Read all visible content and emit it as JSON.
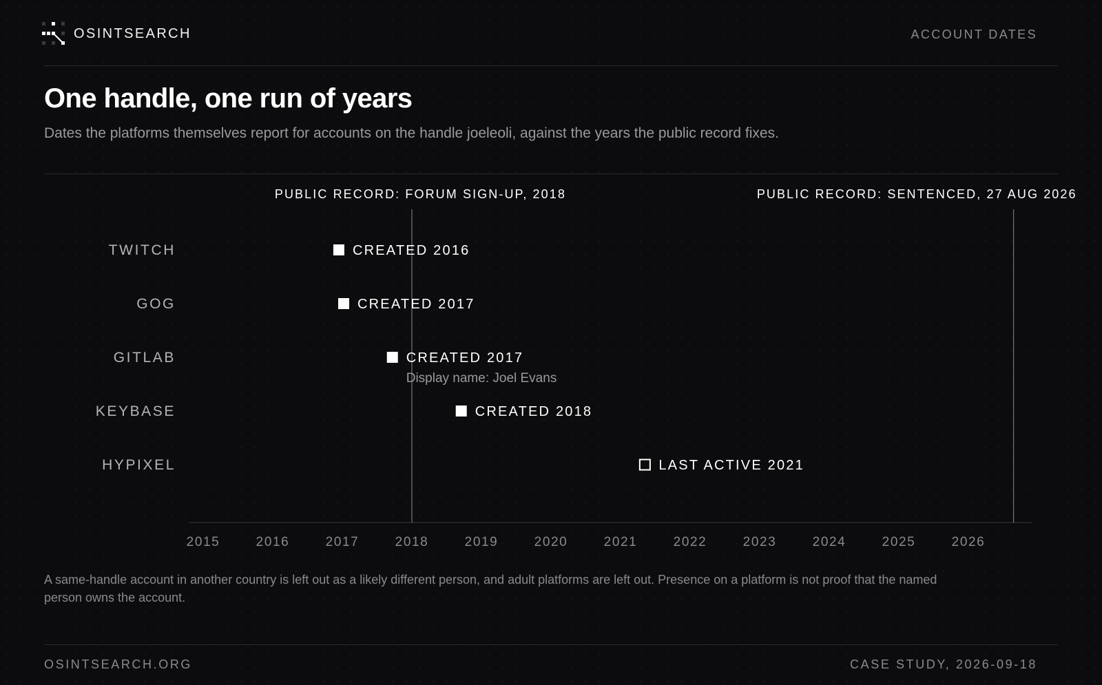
{
  "header": {
    "brand": "OSINTSEARCH",
    "logo_icon": "dotted-network-logo-icon",
    "section": "ACCOUNT DATES"
  },
  "title": "One handle, one run of years",
  "subtitle": "Dates the platforms themselves report for accounts on the handle joeleoli, against the years the public record fixes.",
  "chart_data": {
    "type": "scatter",
    "x_axis": {
      "min": 2015,
      "max": 2026.8,
      "ticks": [
        2015,
        2016,
        2017,
        2018,
        2019,
        2020,
        2021,
        2022,
        2023,
        2024,
        2025,
        2026
      ]
    },
    "grid": false,
    "reference_lines": [
      {
        "x": 2018.0,
        "label": "PUBLIC RECORD: FORUM SIGN-UP, 2018",
        "label_align": "end"
      },
      {
        "x": 2026.65,
        "label": "PUBLIC RECORD: SENTENCED, 27 AUG 2026",
        "label_align": "end"
      }
    ],
    "rows": [
      {
        "platform": "TWITCH",
        "x": 2016.95,
        "label": "CREATED 2016",
        "marker": "filled",
        "note": ""
      },
      {
        "platform": "GOG",
        "x": 2017.02,
        "label": "CREATED 2017",
        "marker": "filled",
        "note": ""
      },
      {
        "platform": "GITLAB",
        "x": 2017.72,
        "label": "CREATED 2017",
        "marker": "filled",
        "note": "Display name: Joel Evans"
      },
      {
        "platform": "KEYBASE",
        "x": 2018.71,
        "label": "CREATED 2018",
        "marker": "filled",
        "note": ""
      },
      {
        "platform": "HYPIXEL",
        "x": 2021.35,
        "label": "LAST ACTIVE 2021",
        "marker": "hollow",
        "note": ""
      }
    ],
    "colors": {
      "axis": "#3a3a3e",
      "reference_line": "#8a8a8e",
      "marker": "#ffffff",
      "row_label": "#b4b4b8",
      "tick": "#8a8a8e"
    }
  },
  "note": "A same-handle account in another country is left out as a likely different person, and adult platforms are left out. Presence on a platform is not proof that the named person owns the account.",
  "footer": {
    "site": "OSINTSEARCH.ORG",
    "case": "CASE STUDY, 2026-09-18"
  }
}
